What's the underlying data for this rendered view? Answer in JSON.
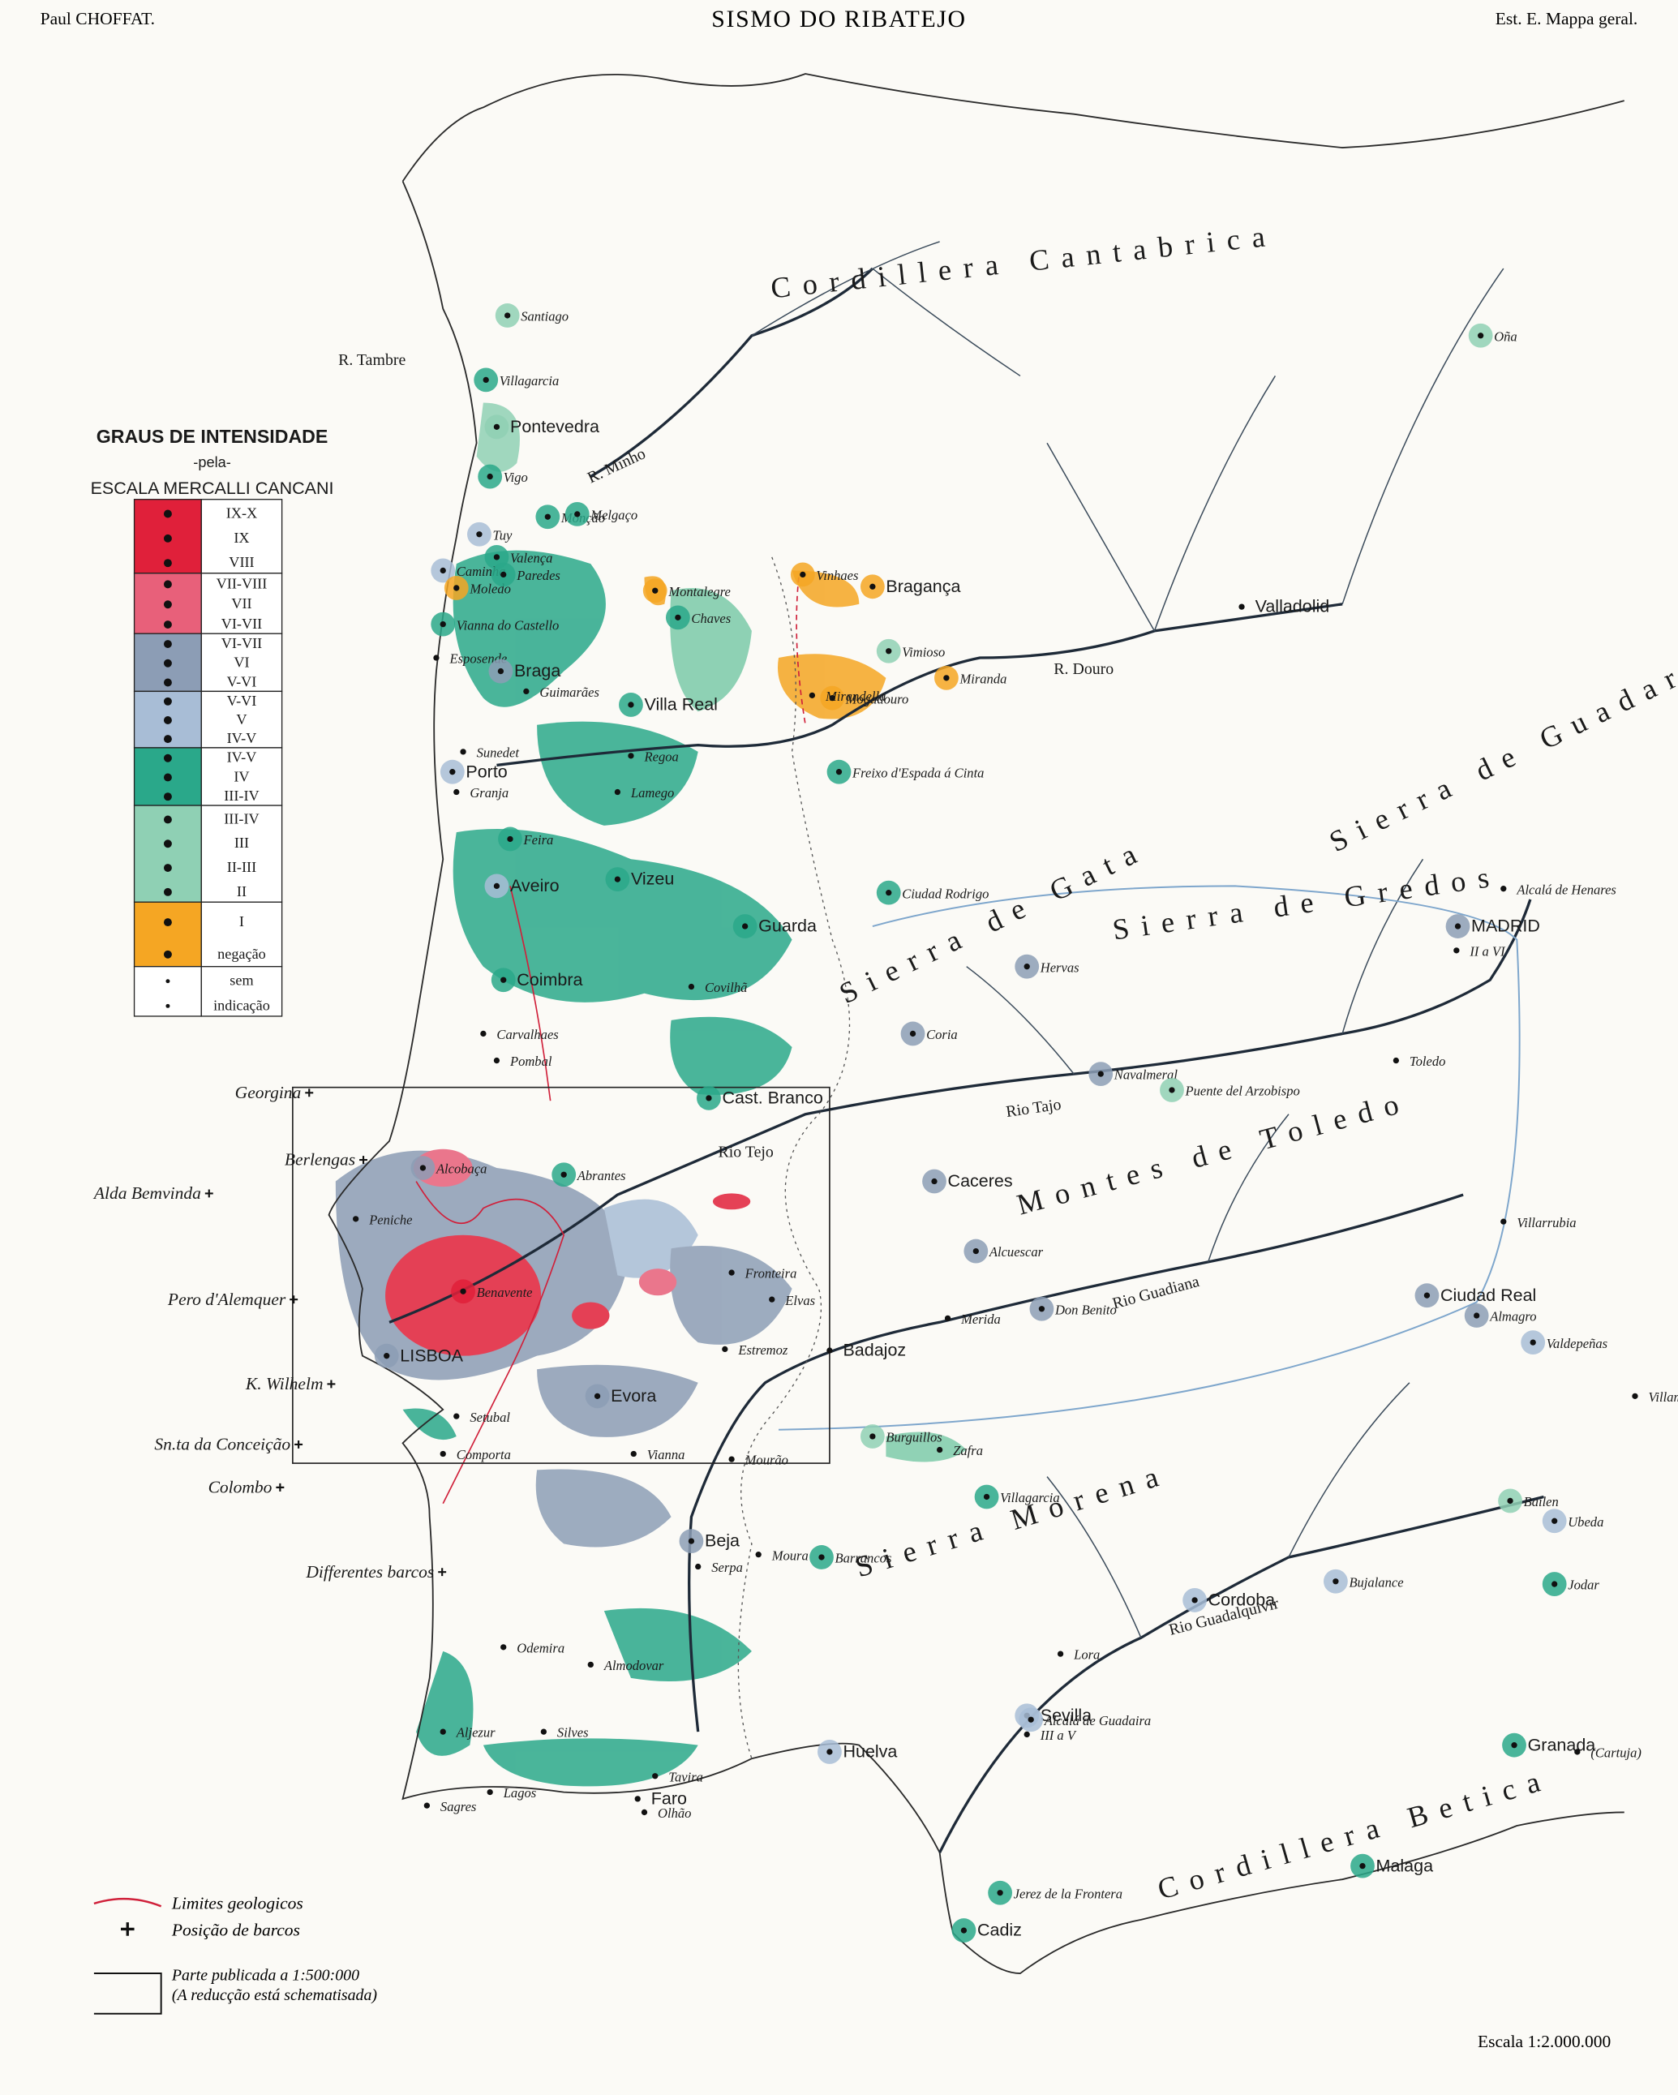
{
  "header": {
    "left": "Paul CHOFFAT.",
    "title": "SISMO DO RIBATEJO",
    "right": "Est. E. Mappa geral."
  },
  "legend": {
    "title": "GRAUS DE INTENSIDADE",
    "subtitle": "-pela-",
    "scale_name": "ESCALA MERCALLI CANCANI",
    "rows": [
      [
        "IX-X",
        "IX",
        "VIII"
      ],
      [
        "VII-VIII",
        "VII",
        "VI-VII"
      ],
      [
        "VI-VII",
        "VI",
        "V-VI"
      ],
      [
        "V-VI",
        "V",
        "IV-V"
      ],
      [
        "IV-V",
        "IV",
        "III-IV"
      ],
      [
        "III-IV",
        "III",
        "II-III",
        "II"
      ],
      [
        "I",
        "negação"
      ],
      [
        "sem",
        "indicação"
      ]
    ],
    "notes": [
      "Limites geologicos",
      "Posição de barcos",
      "Parte publicada a 1:500:000",
      "(A reducção está schematisada)"
    ]
  },
  "scale": "Escala 1:2.000.000",
  "regions": [
    "Cordillera Cantabrica",
    "Sierra de Guadarama",
    "Sierra de Gredos",
    "Sierra de Gata",
    "Montes de Toledo",
    "Sierra Morena",
    "Cordillera Betica"
  ],
  "rivers": [
    "R. Minho",
    "R. Douro",
    "Rio Tajo",
    "Rio Tejo",
    "Rio Guadiana",
    "Rio Guadalquivir",
    "R. Tambre"
  ],
  "boats": [
    "Georgina",
    "Berlengas",
    "Alda Bemvinda",
    "Pero d'Alemquer",
    "K. Wilhelm",
    "Sn.ta da Conceição",
    "Colombo",
    "Differentes barcos"
  ],
  "places": [
    "Santiago",
    "Villagarcia",
    "Pontevedra",
    "Vigo",
    "Tuy",
    "Monção",
    "Melgaço",
    "Valença",
    "Caminha",
    "Moledo",
    "Paredes",
    "Montalegre",
    "Vinhaes",
    "Bragança",
    "Vianna do Castello",
    "Chaves",
    "Valladolid",
    "Vimioso",
    "Esposende",
    "Braga",
    "Villa Real",
    "Miranda",
    "Mogadouro",
    "Guimarães",
    "Sunedet",
    "Porto",
    "Granja",
    "Freixo d'Espada á Cinta",
    "Regoa",
    "Feira",
    "Aveiro",
    "Vizeu",
    "Guarda",
    "Ciudad Rodrigo",
    "Alcalá de Henares",
    "MADRID",
    "II a VI",
    "Coimbra",
    "Hervas",
    "Covilhã",
    "Carvalhaes",
    "Pombal",
    "Coria",
    "Navalmeral",
    "Toledo",
    "Cast. Branco",
    "Puente del Arzobispo",
    "Alcobaça",
    "Abrantes",
    "Caceres",
    "Peniche",
    "Alcuescar",
    "Benavente",
    "Villarrubia",
    "Ciudad Real",
    "Merida",
    "Don Benito",
    "Almagro",
    "Valdepeñas",
    "LISBOA",
    "Evora",
    "Badajoz",
    "Setubal",
    "Villamanrique",
    "Burguillos",
    "Zafra",
    "Comporta",
    "Vianna",
    "Mourão",
    "Beja",
    "Villagarcia",
    "Barrancos",
    "Bailen",
    "Ubeda",
    "Cordoba",
    "Bujalance",
    "Jodar",
    "Odemira",
    "Lora",
    "Sevilla",
    "III a V",
    "Alcalá de Guadaira",
    "Aljezur",
    "Granada",
    "(Cartuja)",
    "Huelva",
    "Lagos",
    "Faro",
    "Tavira",
    "Sagres",
    "Jerez de la Frontera",
    "Malaga",
    "Cadiz",
    "Oña",
    "Estremoz",
    "Serpa",
    "Moura",
    "Almodovar",
    "Silves",
    "Olhão",
    "Lamego",
    "Mirandella",
    "Fronteira",
    "Elvas"
  ]
}
